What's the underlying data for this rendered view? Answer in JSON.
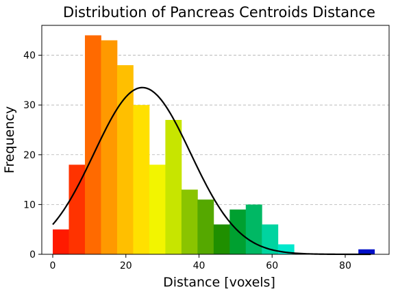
{
  "chart_data": {
    "type": "bar",
    "title": "Distribution of Pancreas Centroids Distance",
    "xlabel": "Distance [voxels]",
    "ylabel": "Frequency",
    "xlim": [
      -3,
      92
    ],
    "ylim": [
      0,
      46
    ],
    "xticks": [
      0,
      20,
      40,
      60,
      80
    ],
    "yticks": [
      0,
      10,
      20,
      30,
      40
    ],
    "grid": "y-dashed",
    "bin_width": 4.4,
    "bins": [
      {
        "x0": 0.0,
        "value": 5,
        "color": "#ff1a00"
      },
      {
        "x0": 4.4,
        "value": 18,
        "color": "#ff3300"
      },
      {
        "x0": 8.8,
        "value": 44,
        "color": "#ff6a00"
      },
      {
        "x0": 13.2,
        "value": 43,
        "color": "#ff9900"
      },
      {
        "x0": 17.6,
        "value": 38,
        "color": "#ffbf00"
      },
      {
        "x0": 22.0,
        "value": 30,
        "color": "#ffe000"
      },
      {
        "x0": 26.4,
        "value": 18,
        "color": "#f2f500"
      },
      {
        "x0": 30.8,
        "value": 27,
        "color": "#c7e500"
      },
      {
        "x0": 35.2,
        "value": 13,
        "color": "#8ac400"
      },
      {
        "x0": 39.6,
        "value": 11,
        "color": "#55a800"
      },
      {
        "x0": 44.0,
        "value": 6,
        "color": "#1f8f00"
      },
      {
        "x0": 48.4,
        "value": 9,
        "color": "#00a030"
      },
      {
        "x0": 52.8,
        "value": 10,
        "color": "#00b864"
      },
      {
        "x0": 57.2,
        "value": 6,
        "color": "#00d4a0"
      },
      {
        "x0": 61.6,
        "value": 2,
        "color": "#00e8cc"
      },
      {
        "x0": 66.0,
        "value": 0,
        "color": "#00c8e8"
      },
      {
        "x0": 70.4,
        "value": 0,
        "color": "#0090e8"
      },
      {
        "x0": 74.8,
        "value": 0,
        "color": "#0060e0"
      },
      {
        "x0": 79.2,
        "value": 0,
        "color": "#0030d8"
      },
      {
        "x0": 83.6,
        "value": 1,
        "color": "#0010c8"
      }
    ],
    "curve": {
      "type": "normal-fit",
      "mean": 24.5,
      "std": 13.2,
      "peak": 33.5,
      "x_range": [
        0,
        87
      ],
      "color": "#000000"
    }
  }
}
